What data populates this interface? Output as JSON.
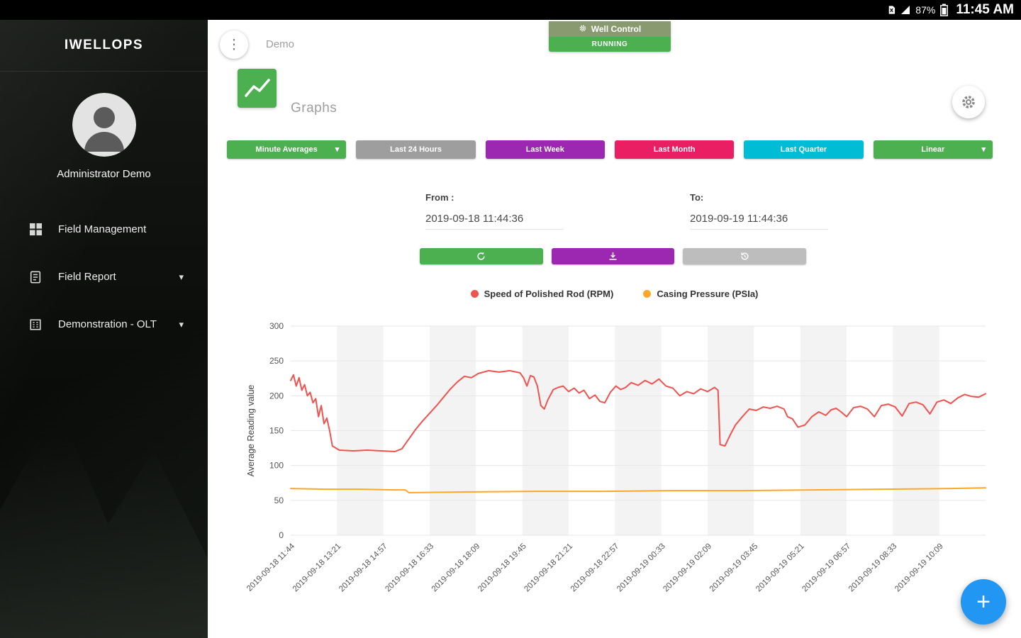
{
  "status_bar": {
    "battery_percent": "87%",
    "time": "11:45 AM"
  },
  "sidebar": {
    "app_title": "IWELLOPS",
    "user_name": "Administrator Demo",
    "items": [
      {
        "label": "Field Management",
        "icon": "grid-icon",
        "expandable": false
      },
      {
        "label": "Field Report",
        "icon": "report-icon",
        "expandable": true
      },
      {
        "label": "Demonstration - OLT",
        "icon": "building-icon",
        "expandable": true
      }
    ]
  },
  "header": {
    "page_title": "Demo",
    "well_control": {
      "label": "Well Control",
      "status": "RUNNING",
      "status_color": "#4caf50"
    }
  },
  "graphs": {
    "section_title": "Graphs",
    "filters": [
      {
        "label": "Minute Averages",
        "color": "#4caf50",
        "dropdown": true
      },
      {
        "label": "Last 24 Hours",
        "color": "#9e9e9e",
        "dropdown": false
      },
      {
        "label": "Last Week",
        "color": "#9c27b0",
        "dropdown": false
      },
      {
        "label": "Last Month",
        "color": "#e91e63",
        "dropdown": false
      },
      {
        "label": "Last Quarter",
        "color": "#00bcd4",
        "dropdown": false
      },
      {
        "label": "Linear",
        "color": "#4caf50",
        "dropdown": true
      }
    ],
    "from_label": "From :",
    "from_value": "2019-09-18 11:44:36",
    "to_label": "To:",
    "to_value": "2019-09-19 11:44:36",
    "actions": [
      {
        "name": "refresh",
        "color": "#4caf50"
      },
      {
        "name": "download",
        "color": "#9c27b0"
      },
      {
        "name": "history",
        "color": "#bdbdbd"
      }
    ]
  },
  "fab_plus": "+",
  "chart_data": {
    "type": "line",
    "title": "",
    "ylabel": "Average Reading value",
    "ylim": [
      0,
      300
    ],
    "y_ticks": [
      0,
      50,
      100,
      150,
      200,
      250,
      300
    ],
    "grid": "horizontal gridlines, alternating vertical gray bands",
    "legend_position": "top-center",
    "x_tick_labels": [
      "2019-09-18 11:44",
      "2019-09-18 13:21",
      "2019-09-18 14:57",
      "2019-09-18 16:33",
      "2019-09-18 18:09",
      "2019-09-18 19:45",
      "2019-09-18 21:21",
      "2019-09-18 22:57",
      "2019-09-19 00:33",
      "2019-09-19 02:09",
      "2019-09-19 03:45",
      "2019-09-19 05:21",
      "2019-09-19 06:57",
      "2019-09-19 08:33",
      "2019-09-19 10:09"
    ],
    "series": [
      {
        "name": "Speed of Polished Rod (RPM)",
        "color": "#ef5350",
        "x": [
          0.0,
          0.004,
          0.008,
          0.012,
          0.016,
          0.02,
          0.024,
          0.028,
          0.032,
          0.036,
          0.04,
          0.044,
          0.048,
          0.052,
          0.056,
          0.06,
          0.07,
          0.09,
          0.11,
          0.13,
          0.15,
          0.16,
          0.17,
          0.18,
          0.19,
          0.2,
          0.21,
          0.22,
          0.23,
          0.24,
          0.25,
          0.26,
          0.27,
          0.285,
          0.3,
          0.315,
          0.33,
          0.335,
          0.34,
          0.345,
          0.35,
          0.355,
          0.36,
          0.365,
          0.37,
          0.378,
          0.385,
          0.392,
          0.4,
          0.408,
          0.415,
          0.422,
          0.43,
          0.438,
          0.445,
          0.452,
          0.46,
          0.468,
          0.475,
          0.482,
          0.49,
          0.5,
          0.51,
          0.52,
          0.53,
          0.54,
          0.55,
          0.56,
          0.57,
          0.58,
          0.59,
          0.6,
          0.61,
          0.615,
          0.618,
          0.625,
          0.632,
          0.64,
          0.65,
          0.66,
          0.67,
          0.68,
          0.69,
          0.7,
          0.71,
          0.715,
          0.722,
          0.73,
          0.74,
          0.75,
          0.76,
          0.77,
          0.778,
          0.785,
          0.792,
          0.8,
          0.81,
          0.82,
          0.83,
          0.84,
          0.85,
          0.86,
          0.87,
          0.88,
          0.89,
          0.9,
          0.91,
          0.92,
          0.93,
          0.94,
          0.95,
          0.96,
          0.97,
          0.98,
          0.99,
          1.0
        ],
        "values": [
          222,
          230,
          214,
          226,
          208,
          216,
          200,
          205,
          190,
          196,
          170,
          186,
          160,
          168,
          150,
          128,
          122,
          121,
          122,
          121,
          120,
          124,
          138,
          152,
          164,
          175,
          186,
          198,
          210,
          220,
          228,
          226,
          232,
          236,
          234,
          236,
          233,
          226,
          214,
          229,
          227,
          214,
          186,
          181,
          194,
          209,
          212,
          214,
          206,
          211,
          204,
          208,
          196,
          201,
          192,
          190,
          205,
          214,
          209,
          212,
          219,
          215,
          222,
          217,
          224,
          214,
          211,
          200,
          206,
          203,
          210,
          206,
          212,
          208,
          130,
          128,
          143,
          158,
          170,
          181,
          179,
          184,
          182,
          185,
          181,
          170,
          167,
          155,
          158,
          170,
          177,
          172,
          180,
          182,
          177,
          170,
          183,
          185,
          181,
          170,
          186,
          188,
          184,
          171,
          189,
          191,
          187,
          174,
          191,
          194,
          189,
          197,
          202,
          199,
          198,
          203
        ]
      },
      {
        "name": "Casing Pressure (PSIa)",
        "color": "#ffa726",
        "x": [
          0.0,
          0.05,
          0.1,
          0.15,
          0.165,
          0.17,
          0.25,
          0.35,
          0.45,
          0.55,
          0.65,
          0.75,
          0.85,
          0.95,
          1.0
        ],
        "values": [
          67,
          66,
          66,
          65,
          65,
          61,
          62,
          63,
          63,
          64,
          64,
          65,
          66,
          67,
          68
        ]
      }
    ]
  }
}
